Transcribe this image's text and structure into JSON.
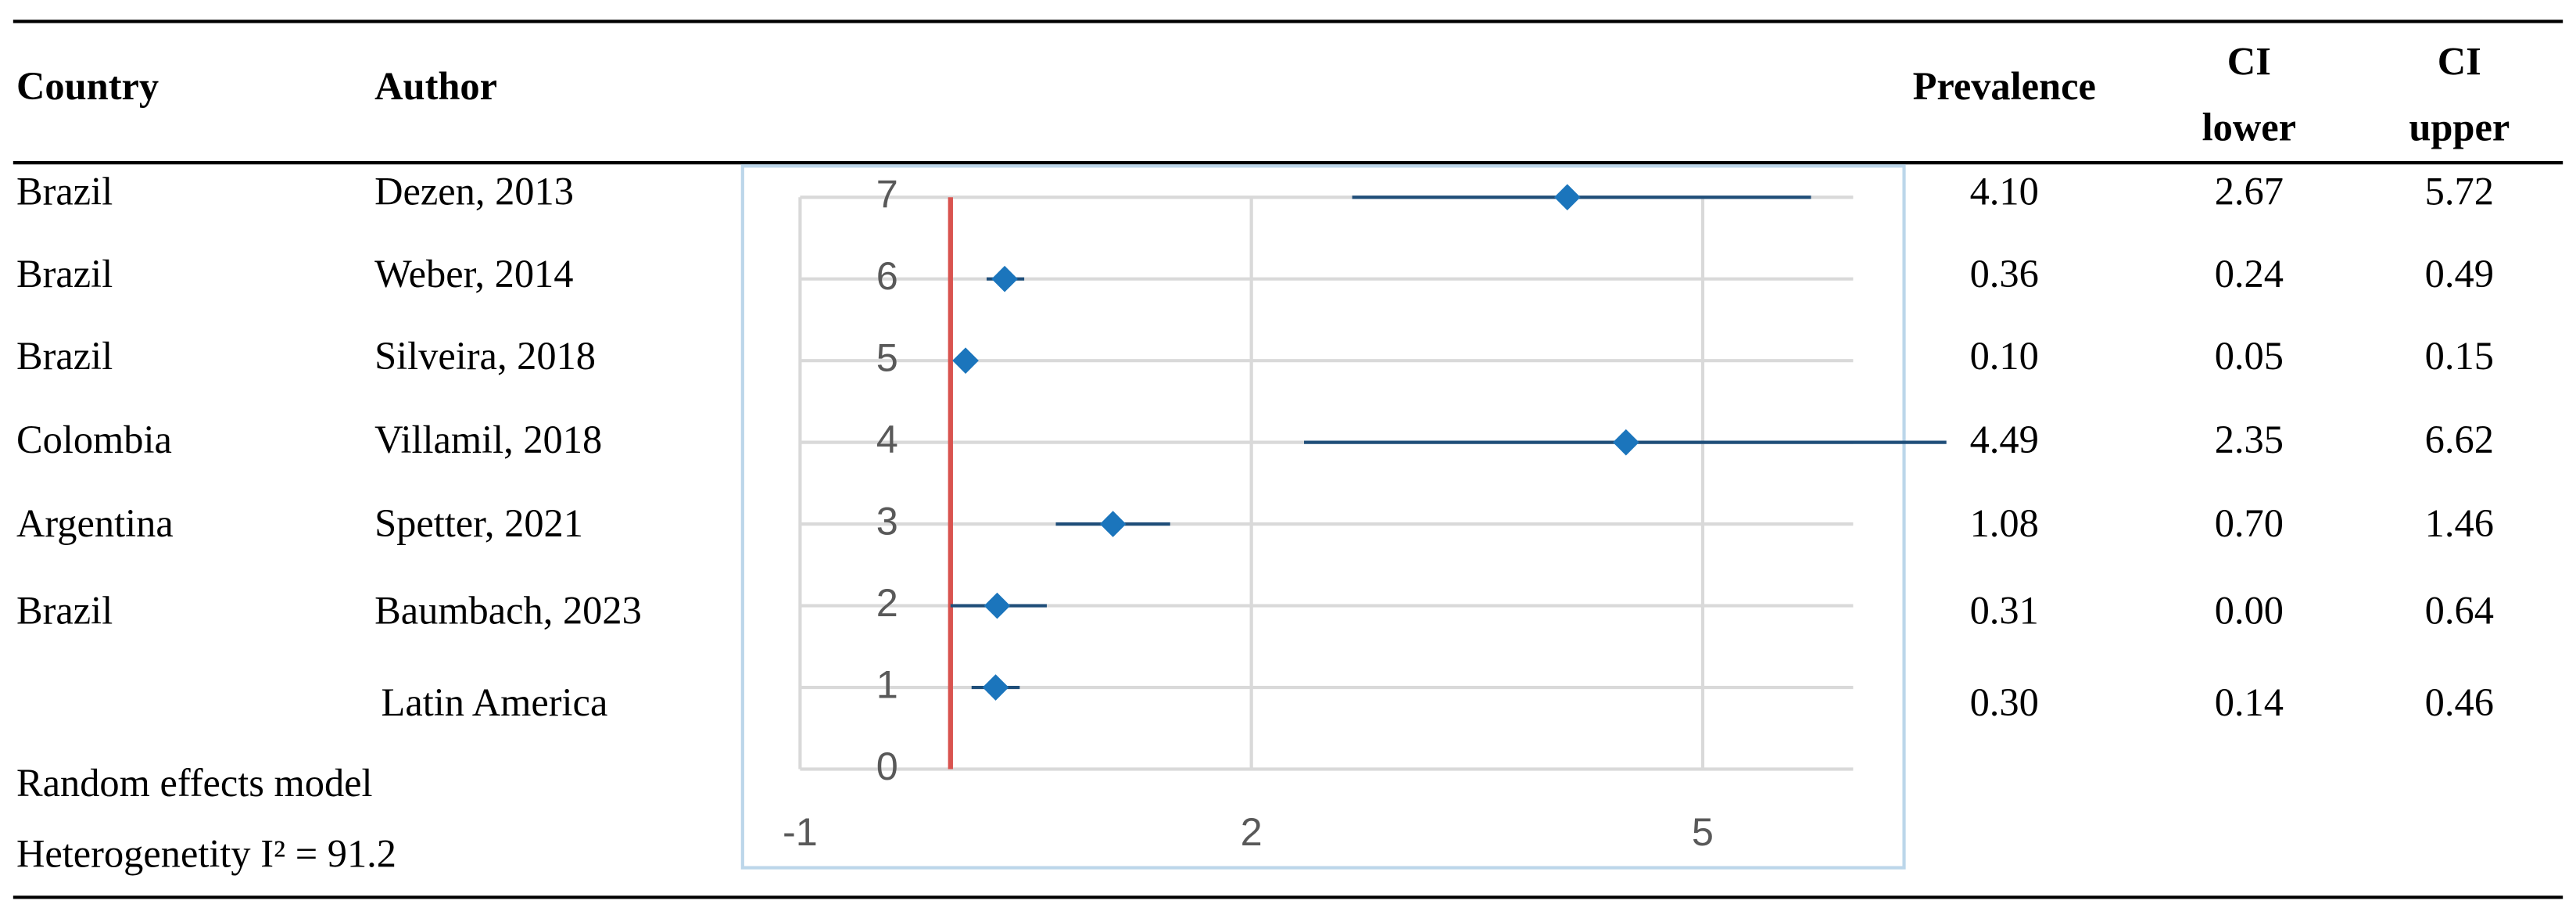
{
  "table": {
    "columns": [
      [
        "Country"
      ],
      [
        "Author"
      ],
      [
        "Prevalence"
      ],
      [
        "CI",
        "lower"
      ],
      [
        "CI",
        "upper"
      ]
    ],
    "rows": [
      {
        "country": "Brazil",
        "author": "Dezen, 2013"
      },
      {
        "country": "Brazil",
        "author": "Weber, 2014"
      },
      {
        "country": "Brazil",
        "author": "Silveira, 2018"
      },
      {
        "country": "Colombia",
        "author": "Villamil, 2018"
      },
      {
        "country": "Argentina",
        "author": "Spetter, 2021"
      },
      {
        "country": "Brazil",
        "author": "Baumbach, 2023"
      },
      {
        "author": "Latin America"
      }
    ],
    "footer": [
      "Random effects model",
      "Heterogenetity I² = 91.2"
    ]
  },
  "chart_data": {
    "type": "forest",
    "y": [
      7,
      6,
      5,
      4,
      3,
      2,
      1
    ],
    "values": [
      4.1,
      0.36,
      0.1,
      4.49,
      1.08,
      0.31,
      0.3
    ],
    "value_labels": [
      "4.10",
      "0.36",
      "0.10",
      "4.49",
      "1.08",
      "0.31",
      "0.30"
    ],
    "ci_lower": [
      2.67,
      0.24,
      0.05,
      2.35,
      0.7,
      0,
      0.14
    ],
    "ci_lower_labels": [
      "2.67",
      "0.24",
      "0.05",
      "2.35",
      "0.70",
      "0.00",
      "0.14"
    ],
    "ci_upper": [
      5.72,
      0.49,
      0.15,
      6.62,
      1.46,
      0.64,
      0.46
    ],
    "ci_upper_labels": [
      "5.72",
      "0.49",
      "0.15",
      "6.62",
      "1.46",
      "0.64",
      "0.46"
    ],
    "xlim": [
      -1,
      6
    ],
    "xticks": [
      -1,
      2,
      5
    ],
    "ylim": [
      0,
      7
    ],
    "yticks": [
      0,
      1,
      2,
      3,
      4,
      5,
      6,
      7
    ],
    "grid": true,
    "color": "#1b75bc",
    "ci_color": "#1f4e79",
    "reference_line": 0,
    "reference_color": "#d9534f"
  }
}
